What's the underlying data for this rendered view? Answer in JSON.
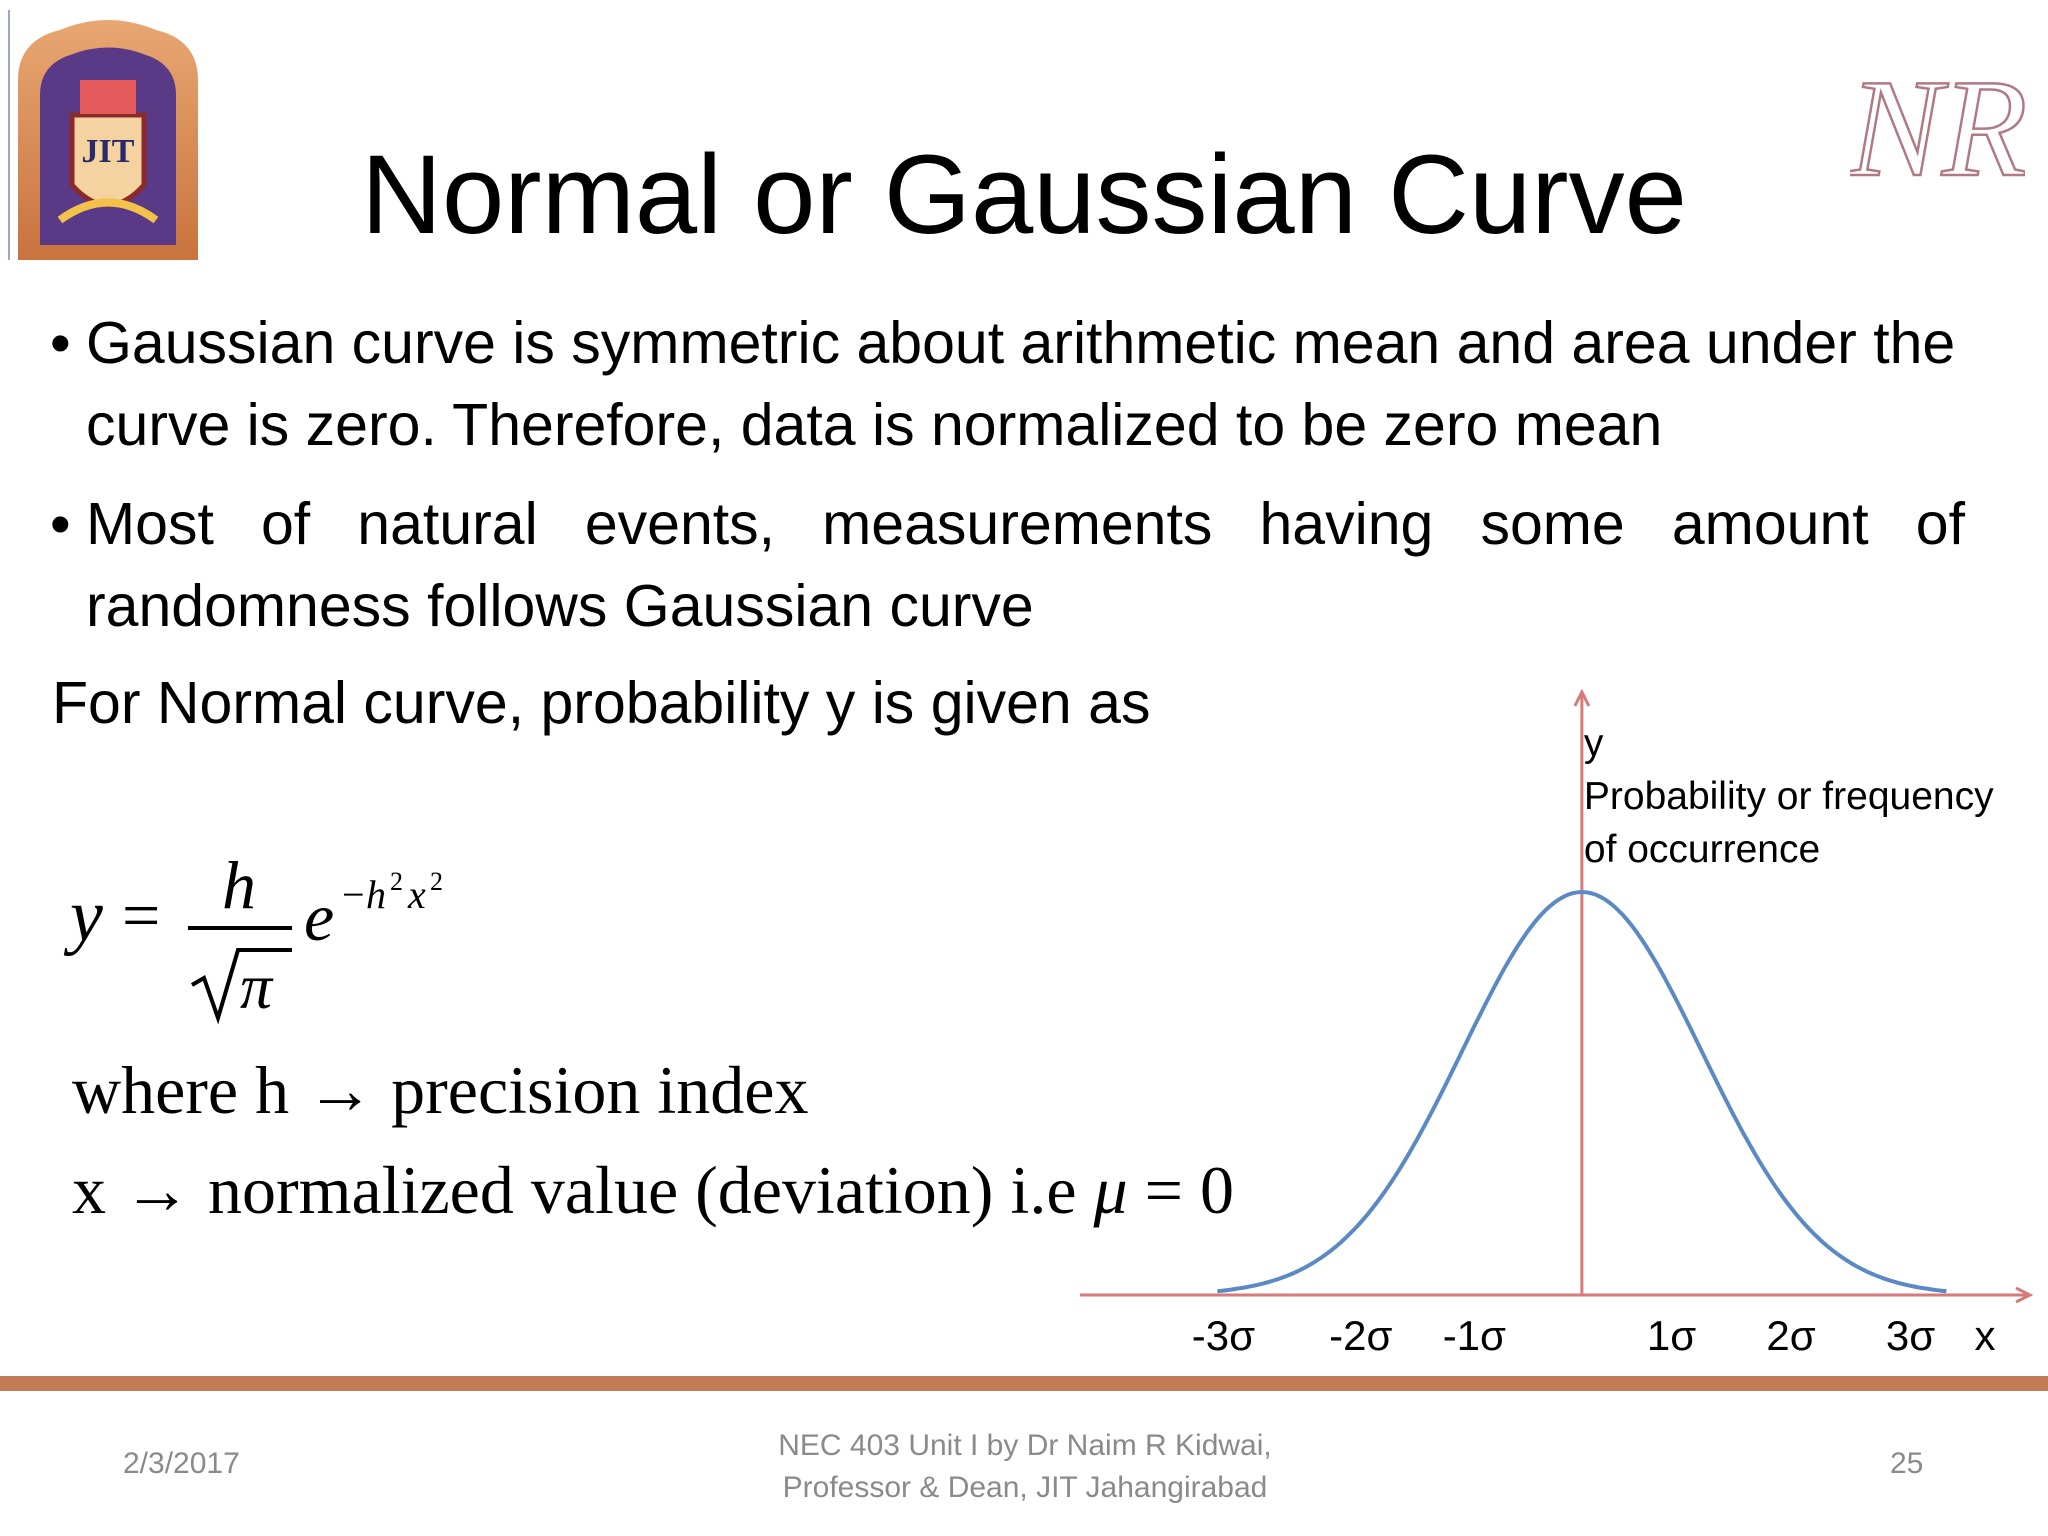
{
  "slide": {
    "title": "Normal or Gaussian Curve",
    "logo_text": "JIT",
    "monogram_text": "NR",
    "bullets": [
      "Gaussian curve is symmetric about arithmetic mean and area under the curve is zero.  Therefore, data is normalized to be zero mean",
      "Most of natural events, measurements having some amount of randomness follows Gaussian curve"
    ],
    "bullet_glyph": "•",
    "lead": "For Normal curve, probability y is given as"
  },
  "formula": {
    "lhs": "y",
    "equals": "=",
    "numerator": "h",
    "denominator": "π",
    "base": "e",
    "exponent_minus": "−",
    "exponent_h": "h",
    "exponent_x": "x",
    "power": "2"
  },
  "where_line": {
    "label": "where h",
    "arrow": "→",
    "text": "precision index"
  },
  "x_line": {
    "label": "x",
    "arrow": "→",
    "text": "normalized value (deviation) i.e",
    "mu": "μ",
    "equals": "=",
    "zero": "0"
  },
  "chart_data": {
    "type": "line",
    "function": "gaussian",
    "mean": 0,
    "sd": 1,
    "xlim": [
      -4.2,
      3.75
    ],
    "curve_range": [
      -3.05,
      3.05
    ],
    "x_tick_labels": [
      {
        "x": -3,
        "label": "-3σ"
      },
      {
        "x": -1.85,
        "label": "-2σ"
      },
      {
        "x": -0.9,
        "label": "-1σ"
      },
      {
        "x": 0.75,
        "label": "1σ"
      },
      {
        "x": 1.75,
        "label": "2σ"
      },
      {
        "x": 2.75,
        "label": "3σ"
      }
    ],
    "x_axis_label": "x",
    "y_axis_label_lines": [
      "y",
      "Probability or frequency",
      "of occurrence"
    ],
    "curve_color": "#5b89c4",
    "axis_color": "#d97a7a"
  },
  "footer": {
    "date": "2/3/2017",
    "center_lines": [
      "NEC 403 Unit I by Dr Naim R Kidwai,",
      "Professor & Dean, JIT Jahangirabad"
    ],
    "page": "25"
  },
  "colors": {
    "footer_bar": "#c37b57",
    "footer_text": "#8a8a8a",
    "monogram": "#b07a84"
  }
}
